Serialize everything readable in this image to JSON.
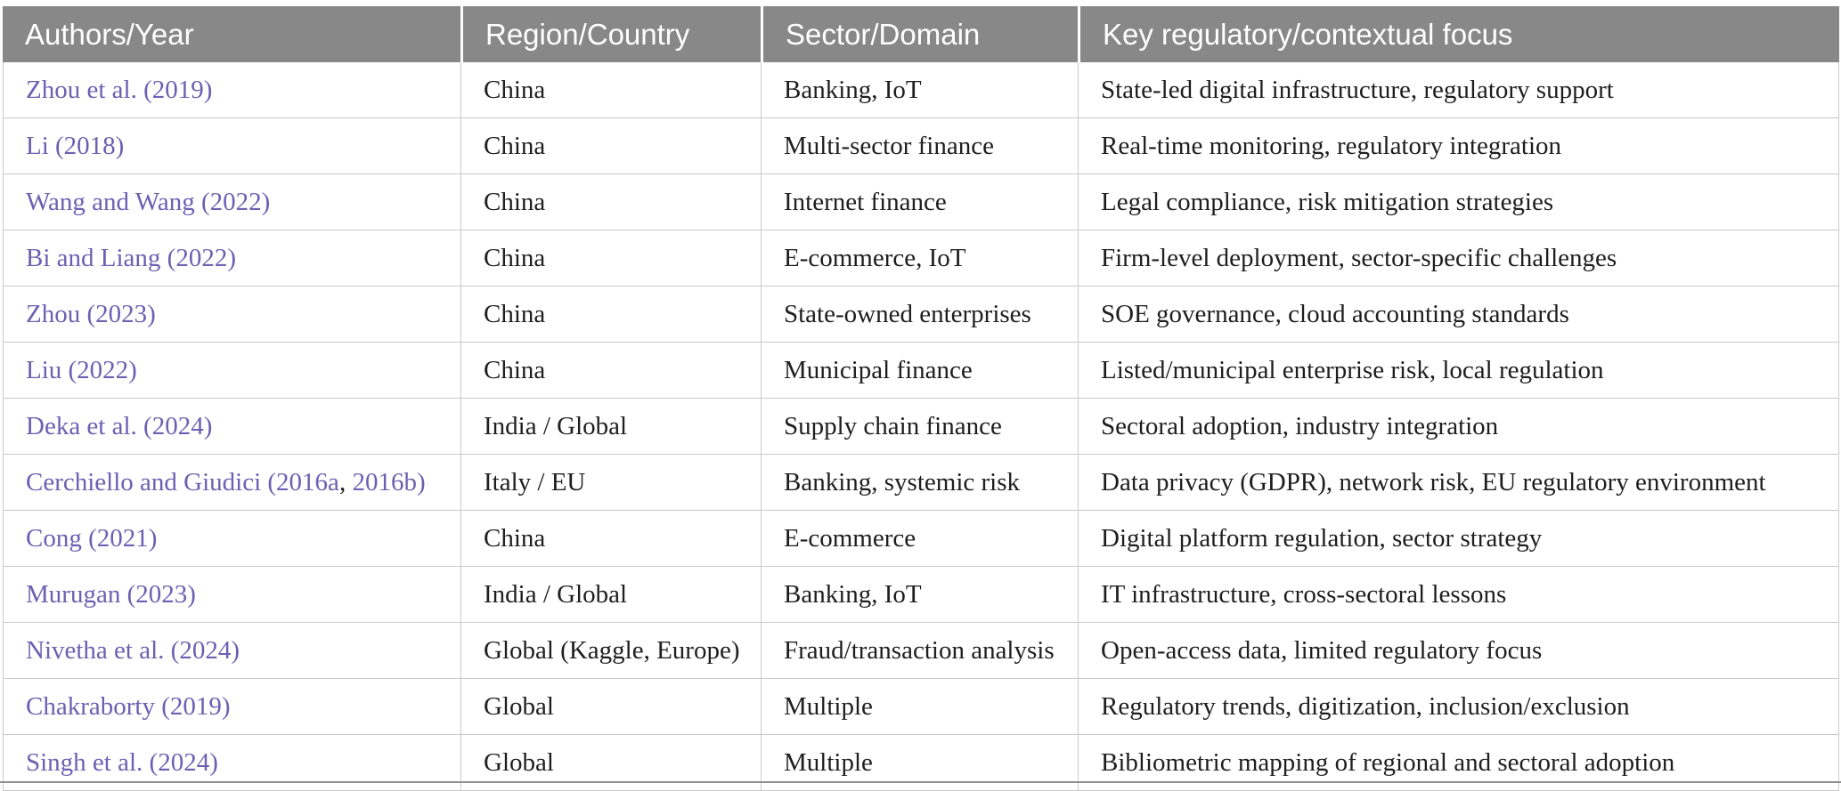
{
  "colors": {
    "header_bg": "#888888",
    "header_text": "#ffffff",
    "link": "#6c60b2",
    "body_text": "#1e1e1e",
    "grid_line": "#c9c9c9",
    "bottom_rule": "#909090"
  },
  "table": {
    "columns": [
      {
        "label": "Authors/Year"
      },
      {
        "label": "Region/Country"
      },
      {
        "label": "Sector/Domain"
      },
      {
        "label": "Key regulatory/contextual focus"
      }
    ],
    "rows": [
      {
        "authors": [
          {
            "text": "Zhou et al. (2019)",
            "link": true
          }
        ],
        "region": "China",
        "sector": "Banking, IoT",
        "focus": "State-led digital infrastructure, regulatory support"
      },
      {
        "authors": [
          {
            "text": "Li (2018)",
            "link": true
          }
        ],
        "region": "China",
        "sector": "Multi-sector finance",
        "focus": "Real-time monitoring, regulatory integration"
      },
      {
        "authors": [
          {
            "text": "Wang and Wang (2022)",
            "link": true
          }
        ],
        "region": "China",
        "sector": "Internet finance",
        "focus": "Legal compliance, risk mitigation strategies"
      },
      {
        "authors": [
          {
            "text": "Bi and Liang (2022)",
            "link": true
          }
        ],
        "region": "China",
        "sector": "E-commerce, IoT",
        "focus": "Firm-level deployment, sector-specific challenges"
      },
      {
        "authors": [
          {
            "text": "Zhou (2023)",
            "link": true
          }
        ],
        "region": "China",
        "sector": "State-owned enterprises",
        "focus": "SOE governance, cloud accounting standards"
      },
      {
        "authors": [
          {
            "text": "Liu (2022)",
            "link": true
          }
        ],
        "region": "China",
        "sector": "Municipal finance",
        "focus": "Listed/municipal enterprise risk, local regulation"
      },
      {
        "authors": [
          {
            "text": "Deka et al. (2024)",
            "link": true
          }
        ],
        "region": "India / Global",
        "sector": "Supply chain finance",
        "focus": "Sectoral adoption, industry integration"
      },
      {
        "authors": [
          {
            "text": "Cerchiello and Giudici (2016a",
            "link": true
          },
          {
            "text": ", ",
            "link": false
          },
          {
            "text": "2016b)",
            "link": true
          }
        ],
        "region": "Italy / EU",
        "sector": "Banking, systemic risk",
        "focus": "Data privacy (GDPR), network risk, EU regulatory environment"
      },
      {
        "authors": [
          {
            "text": "Cong (2021)",
            "link": true
          }
        ],
        "region": "China",
        "sector": "E-commerce",
        "focus": "Digital platform regulation, sector strategy"
      },
      {
        "authors": [
          {
            "text": "Murugan (2023)",
            "link": true
          }
        ],
        "region": "India / Global",
        "sector": "Banking, IoT",
        "focus": "IT infrastructure, cross-sectoral lessons"
      },
      {
        "authors": [
          {
            "text": "Nivetha et al. (2024)",
            "link": true
          }
        ],
        "region": "Global (Kaggle, Europe)",
        "sector": "Fraud/transaction analysis",
        "focus": "Open-access data, limited regulatory focus"
      },
      {
        "authors": [
          {
            "text": "Chakraborty (2019)",
            "link": true
          }
        ],
        "region": "Global",
        "sector": "Multiple",
        "focus": "Regulatory trends, digitization, inclusion/exclusion"
      },
      {
        "authors": [
          {
            "text": "Singh et al. (2024)",
            "link": true
          }
        ],
        "region": "Global",
        "sector": "Multiple",
        "focus": "Bibliometric mapping of regional and sectoral adoption"
      }
    ]
  }
}
